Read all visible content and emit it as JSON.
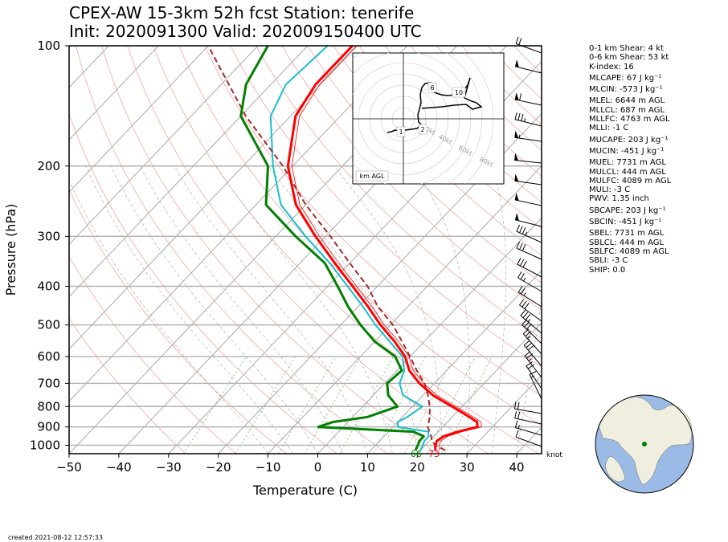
{
  "header": {
    "line1": "CPEX-AW 15-3km  52h fcst  Station: tenerife",
    "line2": "Init: 2020091300  Valid: 202009150400 UTC"
  },
  "footer": {
    "created": "created 2021-08-12 12:57:33"
  },
  "stats": [
    "0-1 km Shear: 4 kt",
    "0-6 km Shear: 53 kt",
    "K-index: 16",
    "MLCAPE: 67 J kg⁻¹",
    "MLCIN: -573 J kg⁻¹",
    "MLEL: 6644 m AGL",
    "MLLCL: 687 m AGL",
    "MLLFC: 4763 m AGL",
    "MLLI: -1 C",
    "MUCAPE: 203 J kg⁻¹",
    "MUCIN: -451 J kg⁻¹",
    "MUEL: 7731 m AGL",
    "MULCL: 444 m AGL",
    "MULFC: 4089 m AGL",
    "MULI: -3 C",
    "PWV: 1.35 inch",
    "SBCAPE: 203 J kg⁻¹",
    "SBCIN: -451 J kg⁻¹",
    "SBEL: 7731 m AGL",
    "SBLCL: 444 m AGL",
    "SBLFC: 4089 m AGL",
    "SBLI: -3 C",
    "SHIP: 0.0"
  ],
  "chart_data": {
    "type": "line",
    "subtype": "skew-T log-P diagram",
    "xlabel": "Temperature (C)",
    "ylabel": "Pressure (hPa)",
    "xlim": [
      -50,
      45
    ],
    "ylim": [
      1050,
      100
    ],
    "x_ticks": [
      -50,
      -40,
      -30,
      -20,
      -10,
      0,
      10,
      20,
      30,
      40
    ],
    "x_tick_labels": [
      "−50",
      "−40",
      "−30",
      "−20",
      "−10",
      "0",
      "10",
      "20",
      "30",
      "40"
    ],
    "y_ticks": [
      100,
      200,
      300,
      400,
      500,
      600,
      700,
      800,
      900,
      1000
    ],
    "y_scale": "log",
    "grid": true,
    "surface_labels": {
      "dewpoint": "66",
      "temperature": "73"
    },
    "wind_unit_label": "knot",
    "colors": {
      "temperature": "#ff0000",
      "dewpoint": "#008000",
      "wetbulb": "#17becf",
      "parcel": "#a52a2a"
    },
    "series": [
      {
        "key": "temperature",
        "p": [
          1030,
          1000,
          975,
          950,
          925,
          900,
          875,
          850,
          800,
          750,
          700,
          650,
          600,
          550,
          500,
          450,
          400,
          350,
          300,
          250,
          200,
          150,
          125,
          100
        ],
        "t": [
          23,
          22,
          21.5,
          22,
          24,
          27,
          26,
          23.5,
          18,
          12,
          7,
          2.5,
          -1,
          -6,
          -12,
          -18,
          -25,
          -33,
          -42,
          -52,
          -61,
          -69,
          -71,
          -71
        ]
      },
      {
        "key": "dewpoint",
        "p": [
          1030,
          1000,
          975,
          950,
          925,
          900,
          875,
          850,
          800,
          750,
          700,
          650,
          600,
          550,
          500,
          450,
          400,
          350,
          300,
          250,
          200,
          150,
          125,
          100
        ],
        "t": [
          19,
          18.5,
          18,
          18,
          15,
          -5,
          -3,
          3,
          7,
          3,
          0.5,
          1,
          -3,
          -10,
          -16,
          -22,
          -28,
          -35,
          -46,
          -58,
          -65,
          -80,
          -85,
          -88
        ]
      },
      {
        "key": "wetbulb",
        "p": [
          1030,
          1000,
          975,
          950,
          925,
          900,
          875,
          850,
          800,
          750,
          700,
          650,
          600,
          550,
          500,
          450,
          400,
          350,
          300,
          250,
          200,
          150,
          125,
          100
        ],
        "t": [
          20,
          19.5,
          19,
          19,
          18,
          11,
          10,
          11,
          12,
          6,
          3,
          1.5,
          -1.5,
          -7,
          -13,
          -19,
          -26,
          -34,
          -44,
          -55,
          -64,
          -74,
          -77,
          -76
        ]
      },
      {
        "key": "parcel",
        "p": [
          1030,
          1000,
          975,
          950,
          900,
          850,
          800,
          750,
          700,
          650,
          600,
          550,
          500,
          450,
          400,
          350,
          300,
          250,
          200,
          150,
          100
        ],
        "t": [
          25,
          22,
          20.5,
          19.5,
          17,
          15.5,
          13.5,
          11,
          8,
          4,
          0,
          -4.5,
          -9.5,
          -16,
          -22,
          -30,
          -39,
          -50,
          -62,
          -79,
          -100
        ]
      }
    ]
  },
  "hodograph": {
    "rings": [
      "20kt",
      "40kt",
      "60kt",
      "80kt"
    ],
    "height_labels": [
      "1",
      "2",
      "6",
      "10"
    ],
    "legend": "km AGL"
  }
}
